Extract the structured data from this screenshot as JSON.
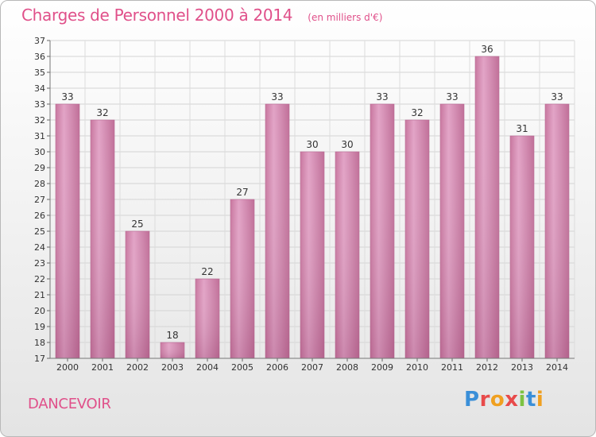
{
  "chart_data": {
    "type": "bar",
    "title": "Charges de Personnel 2000 à 2014",
    "subtitle": "(en milliers d'€)",
    "categories": [
      "2000",
      "2001",
      "2002",
      "2003",
      "2004",
      "2005",
      "2006",
      "2007",
      "2008",
      "2009",
      "2010",
      "2011",
      "2012",
      "2013",
      "2014"
    ],
    "values": [
      33,
      32,
      25,
      18,
      22,
      27,
      33,
      30,
      30,
      33,
      32,
      33,
      36,
      31,
      33
    ],
    "ylim": [
      17,
      37
    ],
    "yticks": [
      17,
      18,
      19,
      20,
      21,
      22,
      23,
      24,
      25,
      26,
      27,
      28,
      29,
      30,
      31,
      32,
      33,
      34,
      35,
      36,
      37
    ],
    "grid": true,
    "bar_color": "#d98fb8"
  },
  "footer": {
    "commune": "DANCEVOIR",
    "logo_text": "Proxiti"
  }
}
